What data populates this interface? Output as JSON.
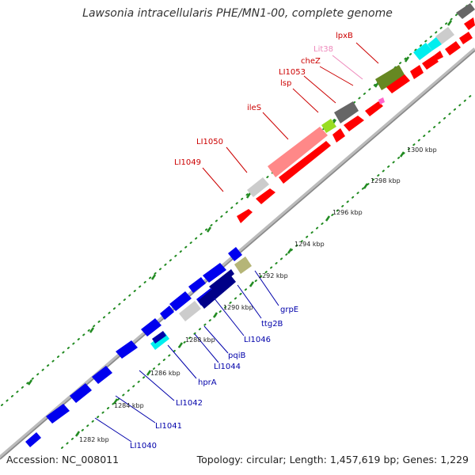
{
  "title": "Lawsonia intracellularis PHE/MN1-00, complete genome",
  "footer": {
    "accession": "Accession: NC_008011",
    "summary": "Topology: circular; Length: 1,457,619 bp; Genes: 1,229"
  },
  "colors": {
    "forward": "#ff0000",
    "reverse": "#0000ee",
    "backbone": "#999999",
    "tick": "#228b22",
    "label_forward": "#cc0000",
    "label_reverse": "#0000aa"
  },
  "scale_labels": [
    "1282 kbp",
    "1284 kbp",
    "1286 kbp",
    "1288 kbp",
    "1290 kbp",
    "1292 kbp",
    "1294 kbp",
    "1296 kbp",
    "1298 kbp",
    "1300 kbp"
  ],
  "forward_labels": [
    {
      "text": "lpxB",
      "color": "#cc0000"
    },
    {
      "text": "Lit38",
      "color": "#ee88bb"
    },
    {
      "text": "cheZ",
      "color": "#cc0000"
    },
    {
      "text": "LI1053",
      "color": "#cc0000"
    },
    {
      "text": "lsp",
      "color": "#cc0000"
    },
    {
      "text": "ileS",
      "color": "#cc0000"
    },
    {
      "text": "LI1050",
      "color": "#cc0000"
    },
    {
      "text": "LI1049",
      "color": "#cc0000"
    }
  ],
  "reverse_labels": [
    {
      "text": "grpE"
    },
    {
      "text": "ttg2B"
    },
    {
      "text": "LI1046"
    },
    {
      "text": "pqiB"
    },
    {
      "text": "LI1044"
    },
    {
      "text": "hprA"
    },
    {
      "text": "LI1042"
    },
    {
      "text": "LI1041"
    },
    {
      "text": "LI1040"
    }
  ]
}
